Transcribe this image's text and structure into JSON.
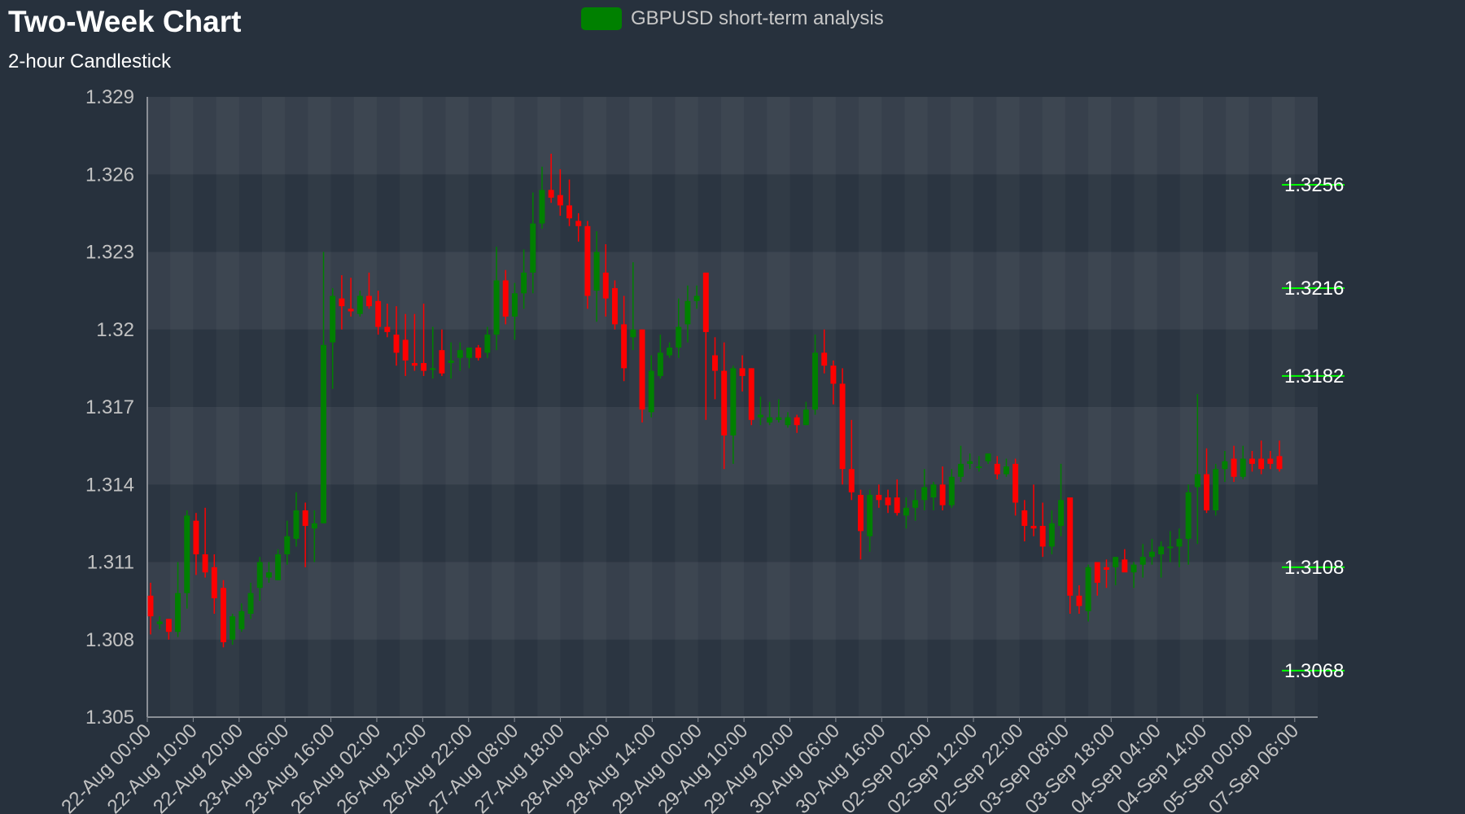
{
  "title": "Two-Week Chart",
  "subtitle": "2-hour Candlestick",
  "legend": {
    "label": "GBPUSD short-term analysis",
    "color": "#008000"
  },
  "chart_data": {
    "type": "candlestick",
    "title": "Two-Week Chart",
    "subtitle": "2-hour Candlestick",
    "series_name": "GBPUSD short-term analysis",
    "ylim": [
      1.305,
      1.329
    ],
    "y_ticks": [
      "1.305",
      "1.308",
      "1.311",
      "1.314",
      "1.317",
      "1.32",
      "1.323",
      "1.326",
      "1.329"
    ],
    "x_ticks": [
      "22-Aug 00:00",
      "22-Aug 10:00",
      "22-Aug 20:00",
      "23-Aug 06:00",
      "23-Aug 16:00",
      "26-Aug 02:00",
      "26-Aug 12:00",
      "26-Aug 22:00",
      "27-Aug 08:00",
      "27-Aug 18:00",
      "28-Aug 04:00",
      "28-Aug 14:00",
      "29-Aug 00:00",
      "29-Aug 10:00",
      "29-Aug 20:00",
      "30-Aug 06:00",
      "30-Aug 16:00",
      "02-Sep 02:00",
      "02-Sep 12:00",
      "02-Sep 22:00",
      "03-Sep 08:00",
      "03-Sep 18:00",
      "04-Sep 04:00",
      "04-Sep 14:00",
      "05-Sep 00:00",
      "07-Sep 06:00"
    ],
    "levels": [
      {
        "label": "1.3256",
        "value": 1.3256
      },
      {
        "label": "1.3216",
        "value": 1.3216
      },
      {
        "label": "1.3182",
        "value": 1.3182
      },
      {
        "label": "1.3108",
        "value": 1.3108
      },
      {
        "label": "1.3068",
        "value": 1.3068
      }
    ],
    "colors": {
      "up": "#008000",
      "down": "#ff0000",
      "level": "#00ff00",
      "grid": "#ffffff"
    },
    "ohlc": [
      [
        1.3097,
        1.3102,
        1.3082,
        1.3089
      ],
      [
        1.3086,
        1.3089,
        1.3084,
        1.3087
      ],
      [
        1.3088,
        1.3088,
        1.308,
        1.3083
      ],
      [
        1.3083,
        1.311,
        1.3081,
        1.3098
      ],
      [
        1.3098,
        1.313,
        1.3092,
        1.3128
      ],
      [
        1.3126,
        1.3129,
        1.3105,
        1.3113
      ],
      [
        1.3113,
        1.3131,
        1.3104,
        1.3106
      ],
      [
        1.3108,
        1.3113,
        1.309,
        1.3096
      ],
      [
        1.31,
        1.3103,
        1.3077,
        1.3079
      ],
      [
        1.308,
        1.309,
        1.3078,
        1.3089
      ],
      [
        1.3084,
        1.3094,
        1.3083,
        1.3091
      ],
      [
        1.309,
        1.3102,
        1.3088,
        1.3098
      ],
      [
        1.31,
        1.3112,
        1.3095,
        1.311
      ],
      [
        1.3104,
        1.311,
        1.3102,
        1.3106
      ],
      [
        1.3103,
        1.3115,
        1.3103,
        1.3113
      ],
      [
        1.3113,
        1.3126,
        1.3109,
        1.312
      ],
      [
        1.3119,
        1.3137,
        1.3116,
        1.313
      ],
      [
        1.313,
        1.3133,
        1.3108,
        1.3124
      ],
      [
        1.3123,
        1.313,
        1.311,
        1.3125
      ],
      [
        1.3125,
        1.323,
        1.3125,
        1.3194
      ],
      [
        1.3195,
        1.3216,
        1.3177,
        1.3213
      ],
      [
        1.3212,
        1.3221,
        1.32,
        1.3209
      ],
      [
        1.3208,
        1.322,
        1.3205,
        1.3207
      ],
      [
        1.3206,
        1.3215,
        1.3205,
        1.3213
      ],
      [
        1.3213,
        1.3222,
        1.3208,
        1.3209
      ],
      [
        1.3211,
        1.3215,
        1.3198,
        1.3201
      ],
      [
        1.3201,
        1.321,
        1.3197,
        1.3199
      ],
      [
        1.3198,
        1.3209,
        1.3186,
        1.3191
      ],
      [
        1.3196,
        1.3206,
        1.3182,
        1.3188
      ],
      [
        1.3187,
        1.3206,
        1.3184,
        1.3186
      ],
      [
        1.3187,
        1.321,
        1.3182,
        1.3184
      ],
      [
        1.3185,
        1.3201,
        1.3181,
        1.3185
      ],
      [
        1.3192,
        1.32,
        1.3182,
        1.3183
      ],
      [
        1.3187,
        1.3195,
        1.3181,
        1.3188
      ],
      [
        1.3189,
        1.3195,
        1.3184,
        1.3192
      ],
      [
        1.3189,
        1.3193,
        1.3185,
        1.3193
      ],
      [
        1.3193,
        1.3194,
        1.3188,
        1.3189
      ],
      [
        1.3191,
        1.3201,
        1.3189,
        1.3198
      ],
      [
        1.3198,
        1.3232,
        1.3192,
        1.3219
      ],
      [
        1.3219,
        1.3223,
        1.3202,
        1.3205
      ],
      [
        1.3205,
        1.3218,
        1.3196,
        1.3214
      ],
      [
        1.3214,
        1.3231,
        1.3208,
        1.3222
      ],
      [
        1.3222,
        1.3253,
        1.3214,
        1.3241
      ],
      [
        1.3241,
        1.3263,
        1.3239,
        1.3254
      ],
      [
        1.3254,
        1.3268,
        1.3249,
        1.3251
      ],
      [
        1.3252,
        1.3262,
        1.3244,
        1.3248
      ],
      [
        1.3248,
        1.3258,
        1.324,
        1.3243
      ],
      [
        1.3242,
        1.3245,
        1.3234,
        1.324
      ],
      [
        1.324,
        1.3242,
        1.3208,
        1.3213
      ],
      [
        1.3215,
        1.3238,
        1.3203,
        1.323
      ],
      [
        1.3222,
        1.3233,
        1.3205,
        1.3212
      ],
      [
        1.3216,
        1.3219,
        1.32,
        1.3202
      ],
      [
        1.3202,
        1.3213,
        1.318,
        1.3185
      ],
      [
        1.3197,
        1.3226,
        1.3192,
        1.32
      ],
      [
        1.32,
        1.32,
        1.3164,
        1.3169
      ],
      [
        1.3168,
        1.319,
        1.3166,
        1.3184
      ],
      [
        1.3182,
        1.3198,
        1.3181,
        1.3191
      ],
      [
        1.319,
        1.3195,
        1.3189,
        1.3193
      ],
      [
        1.3193,
        1.3212,
        1.3189,
        1.3201
      ],
      [
        1.3202,
        1.3217,
        1.3195,
        1.3211
      ],
      [
        1.3211,
        1.3217,
        1.3208,
        1.3213
      ],
      [
        1.3222,
        1.322,
        1.3165,
        1.3199
      ],
      [
        1.319,
        1.3197,
        1.3173,
        1.3184
      ],
      [
        1.3184,
        1.3195,
        1.3146,
        1.3159
      ],
      [
        1.3159,
        1.3186,
        1.3148,
        1.3185
      ],
      [
        1.3185,
        1.319,
        1.3176,
        1.3182
      ],
      [
        1.3185,
        1.3185,
        1.3163,
        1.3165
      ],
      [
        1.3166,
        1.3174,
        1.3163,
        1.3167
      ],
      [
        1.3164,
        1.3172,
        1.3163,
        1.3166
      ],
      [
        1.3165,
        1.3173,
        1.3164,
        1.3166
      ],
      [
        1.3163,
        1.3168,
        1.3162,
        1.3166
      ],
      [
        1.3166,
        1.3167,
        1.316,
        1.3163
      ],
      [
        1.3163,
        1.3172,
        1.3163,
        1.3169
      ],
      [
        1.3169,
        1.3198,
        1.3167,
        1.3191
      ],
      [
        1.3191,
        1.32,
        1.3183,
        1.3186
      ],
      [
        1.3186,
        1.3188,
        1.3171,
        1.3179
      ],
      [
        1.3179,
        1.3185,
        1.314,
        1.3146
      ],
      [
        1.3146,
        1.3165,
        1.3134,
        1.3137
      ],
      [
        1.3136,
        1.3138,
        1.3111,
        1.3122
      ],
      [
        1.312,
        1.3138,
        1.3114,
        1.3136
      ],
      [
        1.3136,
        1.314,
        1.3131,
        1.3134
      ],
      [
        1.3135,
        1.3138,
        1.3129,
        1.3132
      ],
      [
        1.3135,
        1.3142,
        1.3128,
        1.3129
      ],
      [
        1.3128,
        1.3135,
        1.3123,
        1.3131
      ],
      [
        1.3131,
        1.3138,
        1.3126,
        1.3134
      ],
      [
        1.3134,
        1.3146,
        1.313,
        1.3139
      ],
      [
        1.3135,
        1.3141,
        1.313,
        1.314
      ],
      [
        1.314,
        1.3147,
        1.313,
        1.3132
      ],
      [
        1.3132,
        1.3146,
        1.3131,
        1.3143
      ],
      [
        1.3143,
        1.3155,
        1.3141,
        1.3148
      ],
      [
        1.3148,
        1.3152,
        1.3146,
        1.3149
      ],
      [
        1.3147,
        1.3151,
        1.3145,
        1.3147
      ],
      [
        1.3149,
        1.3152,
        1.3148,
        1.3152
      ],
      [
        1.3148,
        1.3151,
        1.3142,
        1.3144
      ],
      [
        1.3144,
        1.315,
        1.3143,
        1.3147
      ],
      [
        1.3148,
        1.315,
        1.3128,
        1.3133
      ],
      [
        1.313,
        1.3134,
        1.3118,
        1.3124
      ],
      [
        1.3124,
        1.314,
        1.312,
        1.3123
      ],
      [
        1.3124,
        1.3133,
        1.3112,
        1.3116
      ],
      [
        1.3116,
        1.313,
        1.3113,
        1.3125
      ],
      [
        1.3124,
        1.3148,
        1.312,
        1.3134
      ],
      [
        1.3135,
        1.3133,
        1.309,
        1.3097
      ],
      [
        1.3097,
        1.3101,
        1.309,
        1.3093
      ],
      [
        1.3091,
        1.3109,
        1.3087,
        1.3108
      ],
      [
        1.311,
        1.311,
        1.3097,
        1.3102
      ],
      [
        1.3108,
        1.3111,
        1.31,
        1.3107
      ],
      [
        1.3108,
        1.3112,
        1.3101,
        1.3112
      ],
      [
        1.3111,
        1.3115,
        1.3107,
        1.3106
      ],
      [
        1.3106,
        1.311,
        1.31,
        1.3109
      ],
      [
        1.3109,
        1.3117,
        1.3104,
        1.3112
      ],
      [
        1.3112,
        1.3119,
        1.3109,
        1.3114
      ],
      [
        1.3113,
        1.3118,
        1.3104,
        1.3116
      ],
      [
        1.3116,
        1.3122,
        1.311,
        1.3116
      ],
      [
        1.3116,
        1.3123,
        1.3108,
        1.3119
      ],
      [
        1.3119,
        1.314,
        1.3109,
        1.3137
      ],
      [
        1.3139,
        1.3175,
        1.3117,
        1.3144
      ],
      [
        1.3144,
        1.3154,
        1.3129,
        1.313
      ],
      [
        1.313,
        1.3148,
        1.3128,
        1.3146
      ],
      [
        1.3146,
        1.3153,
        1.3141,
        1.3149
      ],
      [
        1.315,
        1.3155,
        1.3141,
        1.3143
      ],
      [
        1.3143,
        1.3155,
        1.3142,
        1.315
      ],
      [
        1.315,
        1.3153,
        1.3145,
        1.3148
      ],
      [
        1.315,
        1.3157,
        1.3144,
        1.3146
      ],
      [
        1.315,
        1.3153,
        1.3146,
        1.3148
      ],
      [
        1.3151,
        1.3157,
        1.3145,
        1.3146
      ]
    ]
  }
}
